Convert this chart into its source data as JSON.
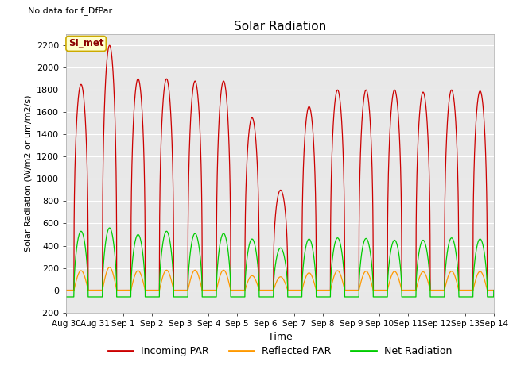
{
  "title": "Solar Radiation",
  "xlabel": "Time",
  "ylabel": "Solar Radiation (W/m2 or um/m2/s)",
  "ylim": [
    -200,
    2300
  ],
  "yticks": [
    -200,
    0,
    200,
    400,
    600,
    800,
    1000,
    1200,
    1400,
    1600,
    1800,
    2000,
    2200
  ],
  "annotation_text": "No data for f_DfPar",
  "legend_label_text": "SI_met",
  "fig_bg_color": "#ffffff",
  "plot_bg_color": "#e8e8e8",
  "line_colors": {
    "incoming": "#cc0000",
    "reflected": "#ff9900",
    "net": "#00cc00"
  },
  "legend_entries": [
    "Incoming PAR",
    "Reflected PAR",
    "Net Radiation"
  ],
  "x_tick_labels": [
    "Aug 30",
    "Aug 31",
    "Sep 1",
    "Sep 2",
    "Sep 3",
    "Sep 4",
    "Sep 5",
    "Sep 6",
    "Sep 7",
    "Sep 8",
    "Sep 9",
    "Sep 10",
    "Sep 11",
    "Sep 12",
    "Sep 13",
    "Sep 14"
  ],
  "peaks_incoming": [
    1850,
    2200,
    1900,
    1900,
    1880,
    1880,
    1550,
    900,
    1650,
    1800,
    1800,
    1800,
    1780,
    1800,
    1790
  ],
  "peaks_net": [
    530,
    560,
    500,
    530,
    510,
    510,
    460,
    380,
    460,
    470,
    465,
    450,
    450,
    470,
    460
  ],
  "peaks_reflected": [
    175,
    205,
    175,
    180,
    180,
    180,
    130,
    120,
    155,
    175,
    170,
    168,
    165,
    170,
    168
  ],
  "night_net": -60,
  "day_start": 6.5,
  "day_end": 18.5
}
